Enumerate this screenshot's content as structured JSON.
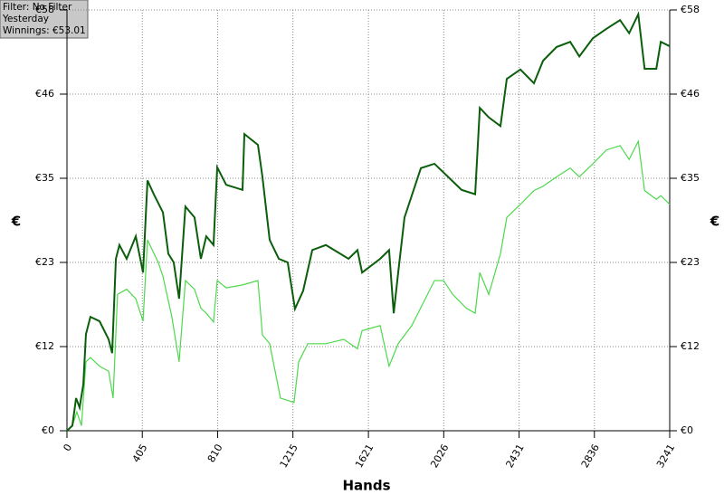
{
  "chart_data": {
    "type": "line",
    "info": [
      "Filter: No Filter",
      "Yesterday",
      "Winnings: €53.01"
    ],
    "xlabel": "Hands",
    "ylabel": "€",
    "y2label": "€",
    "xlim": [
      0,
      3241
    ],
    "xticks": [
      0,
      405,
      810,
      1215,
      1621,
      2026,
      2431,
      2836,
      3241
    ],
    "ylim": [
      0,
      58
    ],
    "yticks": [
      {
        "value": 0,
        "label": "€0"
      },
      {
        "value": 11.6,
        "label": "€12"
      },
      {
        "value": 23.2,
        "label": "€23"
      },
      {
        "value": 34.8,
        "label": "€35"
      },
      {
        "value": 46.4,
        "label": "€46"
      },
      {
        "value": 58,
        "label": "€58"
      }
    ],
    "y2lim": [
      0,
      58
    ],
    "y2ticks": [
      {
        "value": 0,
        "label": "€0"
      },
      {
        "value": 11.6,
        "label": "€12"
      },
      {
        "value": 23.2,
        "label": "€23"
      },
      {
        "value": 34.8,
        "label": "€35"
      },
      {
        "value": 46.4,
        "label": "€46"
      },
      {
        "value": 58,
        "label": "€58"
      }
    ],
    "grid": true,
    "series": [
      {
        "color": "#4cd94c",
        "x": [
          0,
          29,
          53,
          78,
          102,
          126,
          175,
          224,
          248,
          272,
          321,
          370,
          409,
          433,
          491,
          516,
          564,
          603,
          637,
          686,
          720,
          749,
          788,
          808,
          856,
          944,
          1027,
          1051,
          1090,
          1148,
          1221,
          1246,
          1295,
          1392,
          1489,
          1562,
          1587,
          1684,
          1732,
          1781,
          1854,
          1927,
          1976,
          2025,
          2074,
          2147,
          2195,
          2220,
          2268,
          2331,
          2365,
          2438,
          2511,
          2560,
          2633,
          2706,
          2755,
          2828,
          2901,
          2974,
          3023,
          3072,
          3106,
          3169,
          3193,
          3241
        ],
        "values": [
          0,
          0.7,
          2.6,
          0.7,
          9.5,
          10.1,
          8.9,
          8.2,
          4.5,
          18.8,
          19.5,
          18.2,
          15.1,
          26.3,
          23.2,
          21.3,
          15.7,
          9.5,
          20.7,
          19.5,
          16.9,
          16.2,
          15.0,
          20.7,
          19.7,
          20.1,
          20.7,
          13.2,
          12.0,
          4.5,
          3.9,
          9.5,
          12.0,
          12.0,
          12.6,
          11.3,
          13.8,
          14.5,
          8.9,
          12.0,
          14.5,
          18.2,
          20.7,
          20.7,
          18.8,
          16.9,
          16.2,
          21.8,
          18.8,
          24.4,
          29.4,
          31.2,
          33.1,
          33.7,
          35.0,
          36.2,
          35.0,
          36.8,
          38.7,
          39.3,
          37.4,
          39.9,
          33.1,
          31.9,
          32.4,
          31.2
        ]
      },
      {
        "color": "#0b5e0b",
        "x": [
          0,
          29,
          49,
          68,
          88,
          102,
          126,
          175,
          224,
          243,
          263,
          282,
          321,
          370,
          409,
          433,
          467,
          516,
          545,
          574,
          603,
          637,
          686,
          720,
          749,
          788,
          808,
          856,
          944,
          954,
          1027,
          1051,
          1090,
          1139,
          1187,
          1226,
          1270,
          1319,
          1392,
          1514,
          1562,
          1587,
          1684,
          1732,
          1757,
          1781,
          1815,
          1854,
          1903,
          1976,
          2049,
          2122,
          2195,
          2220,
          2268,
          2331,
          2365,
          2438,
          2511,
          2560,
          2633,
          2706,
          2755,
          2828,
          2901,
          2974,
          3023,
          3072,
          3106,
          3169,
          3193,
          3241
        ],
        "values": [
          0,
          0.7,
          4.5,
          3.2,
          6.4,
          13.3,
          15.7,
          15.1,
          12.6,
          10.7,
          23.7,
          25.6,
          23.7,
          26.8,
          21.8,
          34.5,
          32.6,
          30.1,
          24.4,
          23.2,
          18.2,
          30.9,
          29.4,
          23.7,
          26.8,
          25.6,
          36.3,
          33.9,
          33.2,
          40.9,
          39.4,
          35.0,
          26.3,
          23.7,
          23.2,
          16.8,
          19.3,
          24.9,
          25.6,
          23.7,
          24.9,
          21.8,
          23.7,
          24.9,
          16.2,
          21.8,
          29.4,
          32.4,
          36.2,
          36.8,
          35.0,
          33.2,
          32.6,
          44.5,
          43.2,
          42.0,
          48.5,
          49.8,
          47.9,
          51.0,
          52.9,
          53.6,
          51.6,
          54.1,
          55.4,
          56.6,
          54.8,
          57.4,
          49.9,
          49.9,
          53.6,
          53.0
        ]
      }
    ]
  }
}
